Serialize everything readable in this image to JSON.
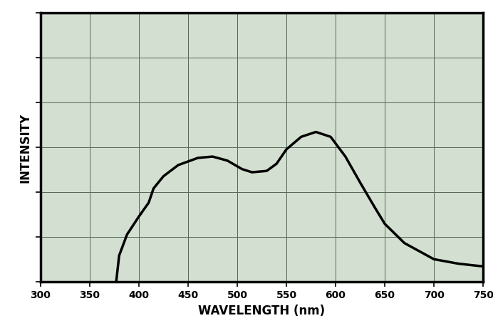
{
  "chart_data": {
    "type": "line",
    "x_label": "WAVELENGTH (nm)",
    "y_label": "INTENSITY",
    "x": [
      377,
      380,
      388,
      400,
      410,
      415,
      425,
      440,
      460,
      475,
      490,
      505,
      515,
      530,
      540,
      550,
      565,
      580,
      595,
      610,
      625,
      640,
      650,
      670,
      700,
      725,
      750
    ],
    "values": [
      0,
      0.59,
      1.06,
      1.46,
      1.77,
      2.09,
      2.36,
      2.61,
      2.77,
      2.8,
      2.71,
      2.52,
      2.45,
      2.48,
      2.64,
      2.96,
      3.24,
      3.35,
      3.24,
      2.8,
      2.22,
      1.66,
      1.3,
      0.87,
      0.51,
      0.41,
      0.35
    ],
    "color": "#000000",
    "xlim": [
      300,
      750
    ],
    "xticks": [
      300,
      350,
      400,
      450,
      500,
      550,
      600,
      650,
      700,
      750
    ],
    "ylim": [
      0,
      6
    ],
    "yticks": [
      0,
      1,
      2,
      3,
      4,
      5,
      6
    ],
    "grid": true,
    "tick_labels": "x"
  }
}
